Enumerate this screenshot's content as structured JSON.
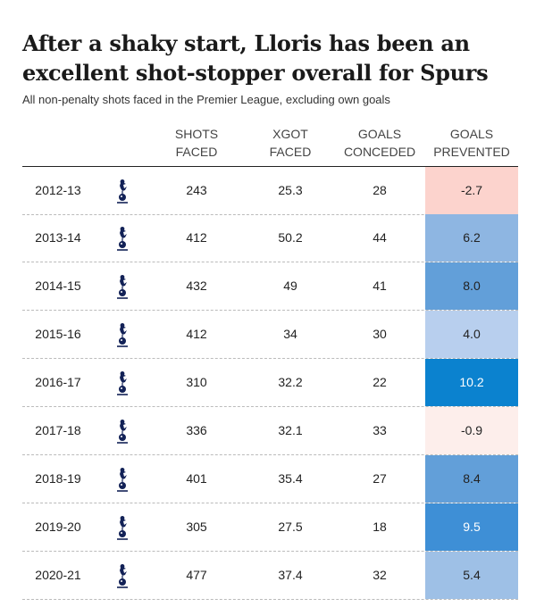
{
  "title": "After a shaky start, Lloris has been an excellent shot-stopper overall for Spurs",
  "subtitle": "All non-penalty shots faced in the Premier League, excluding own goals",
  "chart_data": {
    "type": "table",
    "columns": [
      "",
      "",
      "SHOTS FACED",
      "XGOT FACED",
      "GOALS CONCEDED",
      "GOALS PREVENTED"
    ],
    "rows": [
      {
        "season": "2012-13",
        "shots_faced": "243",
        "xgot_faced": "25.3",
        "goals_conceded": "28",
        "goals_prevented": "-2.7",
        "color": "#fcd3cd"
      },
      {
        "season": "2013-14",
        "shots_faced": "412",
        "xgot_faced": "50.2",
        "goals_conceded": "44",
        "goals_prevented": "6.2",
        "color": "#8eb6e2"
      },
      {
        "season": "2014-15",
        "shots_faced": "432",
        "xgot_faced": "49",
        "goals_conceded": "41",
        "goals_prevented": "8.0",
        "color": "#629fd9"
      },
      {
        "season": "2015-16",
        "shots_faced": "412",
        "xgot_faced": "34",
        "goals_conceded": "30",
        "goals_prevented": "4.0",
        "color": "#b8cfee"
      },
      {
        "season": "2016-17",
        "shots_faced": "310",
        "xgot_faced": "32.2",
        "goals_conceded": "22",
        "goals_prevented": "10.2",
        "color": "#0b82cf"
      },
      {
        "season": "2017-18",
        "shots_faced": "336",
        "xgot_faced": "32.1",
        "goals_conceded": "33",
        "goals_prevented": "-0.9",
        "color": "#fdeeeb"
      },
      {
        "season": "2018-19",
        "shots_faced": "401",
        "xgot_faced": "35.4",
        "goals_conceded": "27",
        "goals_prevented": "8.4",
        "color": "#629fd9"
      },
      {
        "season": "2019-20",
        "shots_faced": "305",
        "xgot_faced": "27.5",
        "goals_conceded": "18",
        "goals_prevented": "9.5",
        "color": "#3e8fd6"
      },
      {
        "season": "2020-21",
        "shots_faced": "477",
        "xgot_faced": "37.4",
        "goals_conceded": "32",
        "goals_prevented": "5.4",
        "color": "#9ec0e6"
      }
    ],
    "crest_icon": "tottenham-cockerel-icon",
    "navy": "#132257",
    "rule_color": "#222222",
    "dash_color": "#bbbbbb"
  }
}
